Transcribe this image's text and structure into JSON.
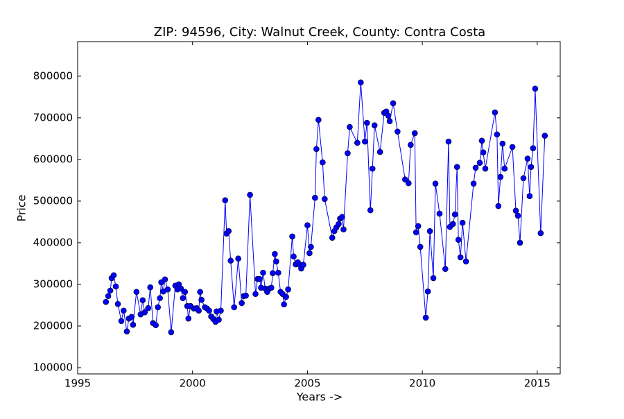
{
  "chart_data": {
    "type": "line",
    "title": "ZIP: 94596, City: Walnut Creek, County: Contra Costa",
    "x_label": "Years ->",
    "y_label": "Price",
    "color": "#0000ff",
    "marker_edge_color": "#000000",
    "markers": true,
    "grid": false,
    "xlim": [
      1995,
      2016
    ],
    "ylim": [
      85000,
      883000
    ],
    "xticks": [
      1995,
      2000,
      2005,
      2010,
      2015
    ],
    "yticks": [
      100000,
      200000,
      300000,
      400000,
      500000,
      600000,
      700000,
      800000
    ],
    "x": [
      1996.23,
      1996.33,
      1996.42,
      1996.48,
      1996.57,
      1996.66,
      1996.75,
      1996.9,
      1997.0,
      1997.14,
      1997.23,
      1997.35,
      1997.41,
      1997.56,
      1997.74,
      1997.83,
      1997.92,
      1998.07,
      1998.16,
      1998.28,
      1998.4,
      1998.49,
      1998.58,
      1998.64,
      1998.73,
      1998.8,
      1998.92,
      1999.07,
      1999.25,
      1999.34,
      1999.4,
      1999.49,
      1999.58,
      1999.67,
      1999.77,
      1999.82,
      1999.91,
      2000.06,
      2000.18,
      2000.27,
      2000.33,
      2000.39,
      2000.54,
      2000.63,
      2000.72,
      2000.81,
      2000.9,
      2001.0,
      2001.05,
      2001.14,
      2001.23,
      2001.42,
      2001.48,
      2001.57,
      2001.66,
      2001.81,
      2001.99,
      2002.14,
      2002.23,
      2002.32,
      2002.5,
      2002.74,
      2002.83,
      2002.92,
      2002.98,
      2003.07,
      2003.16,
      2003.25,
      2003.34,
      2003.43,
      2003.49,
      2003.58,
      2003.64,
      2003.73,
      2003.83,
      2003.92,
      2003.98,
      2004.07,
      2004.16,
      2004.34,
      2004.4,
      2004.49,
      2004.58,
      2004.67,
      2004.73,
      2004.82,
      2005.0,
      2005.09,
      2005.15,
      2005.33,
      2005.39,
      2005.48,
      2005.66,
      2005.75,
      2006.08,
      2006.17,
      2006.26,
      2006.36,
      2006.42,
      2006.51,
      2006.57,
      2006.75,
      2006.84,
      2007.17,
      2007.32,
      2007.5,
      2007.59,
      2007.74,
      2007.83,
      2007.92,
      2008.16,
      2008.34,
      2008.43,
      2008.52,
      2008.58,
      2008.73,
      2008.92,
      2009.25,
      2009.4,
      2009.49,
      2009.67,
      2009.73,
      2009.82,
      2009.91,
      2010.15,
      2010.24,
      2010.33,
      2010.48,
      2010.57,
      2010.75,
      2011.0,
      2011.14,
      2011.2,
      2011.33,
      2011.42,
      2011.51,
      2011.57,
      2011.66,
      2011.75,
      2011.9,
      2012.23,
      2012.32,
      2012.5,
      2012.59,
      2012.65,
      2012.74,
      2013.16,
      2013.25,
      2013.31,
      2013.4,
      2013.49,
      2013.58,
      2013.92,
      2014.07,
      2014.16,
      2014.25,
      2014.4,
      2014.58,
      2014.67,
      2014.73,
      2014.82,
      2014.91,
      2015.15,
      2015.33
    ],
    "values": [
      258000,
      272000,
      285000,
      315000,
      322000,
      295000,
      253000,
      212000,
      237000,
      187000,
      218000,
      222000,
      203000,
      282000,
      228000,
      262000,
      233000,
      243000,
      293000,
      207000,
      202000,
      245000,
      267000,
      305000,
      283000,
      312000,
      288000,
      185000,
      297000,
      288000,
      300000,
      290000,
      267000,
      282000,
      248000,
      218000,
      248000,
      242000,
      243000,
      237000,
      282000,
      263000,
      245000,
      242000,
      237000,
      223000,
      217000,
      210000,
      235000,
      215000,
      237000,
      502000,
      422000,
      428000,
      357000,
      245000,
      362000,
      255000,
      272000,
      273000,
      515000,
      277000,
      313000,
      313000,
      292000,
      328000,
      290000,
      282000,
      290000,
      292000,
      327000,
      373000,
      355000,
      328000,
      282000,
      277000,
      252000,
      270000,
      288000,
      415000,
      367000,
      348000,
      353000,
      347000,
      338000,
      347000,
      442000,
      375000,
      390000,
      508000,
      625000,
      695000,
      593000,
      505000,
      412000,
      428000,
      437000,
      445000,
      458000,
      462000,
      432000,
      615000,
      678000,
      640000,
      785000,
      643000,
      688000,
      478000,
      578000,
      682000,
      618000,
      712000,
      715000,
      705000,
      692000,
      735000,
      667000,
      552000,
      543000,
      635000,
      663000,
      425000,
      440000,
      390000,
      220000,
      283000,
      428000,
      315000,
      542000,
      470000,
      337000,
      643000,
      438000,
      445000,
      468000,
      582000,
      407000,
      365000,
      448000,
      355000,
      542000,
      580000,
      592000,
      645000,
      617000,
      578000,
      713000,
      660000,
      488000,
      558000,
      638000,
      578000,
      630000,
      477000,
      465000,
      400000,
      555000,
      602000,
      512000,
      582000,
      627000,
      770000,
      423000,
      657000
    ]
  }
}
